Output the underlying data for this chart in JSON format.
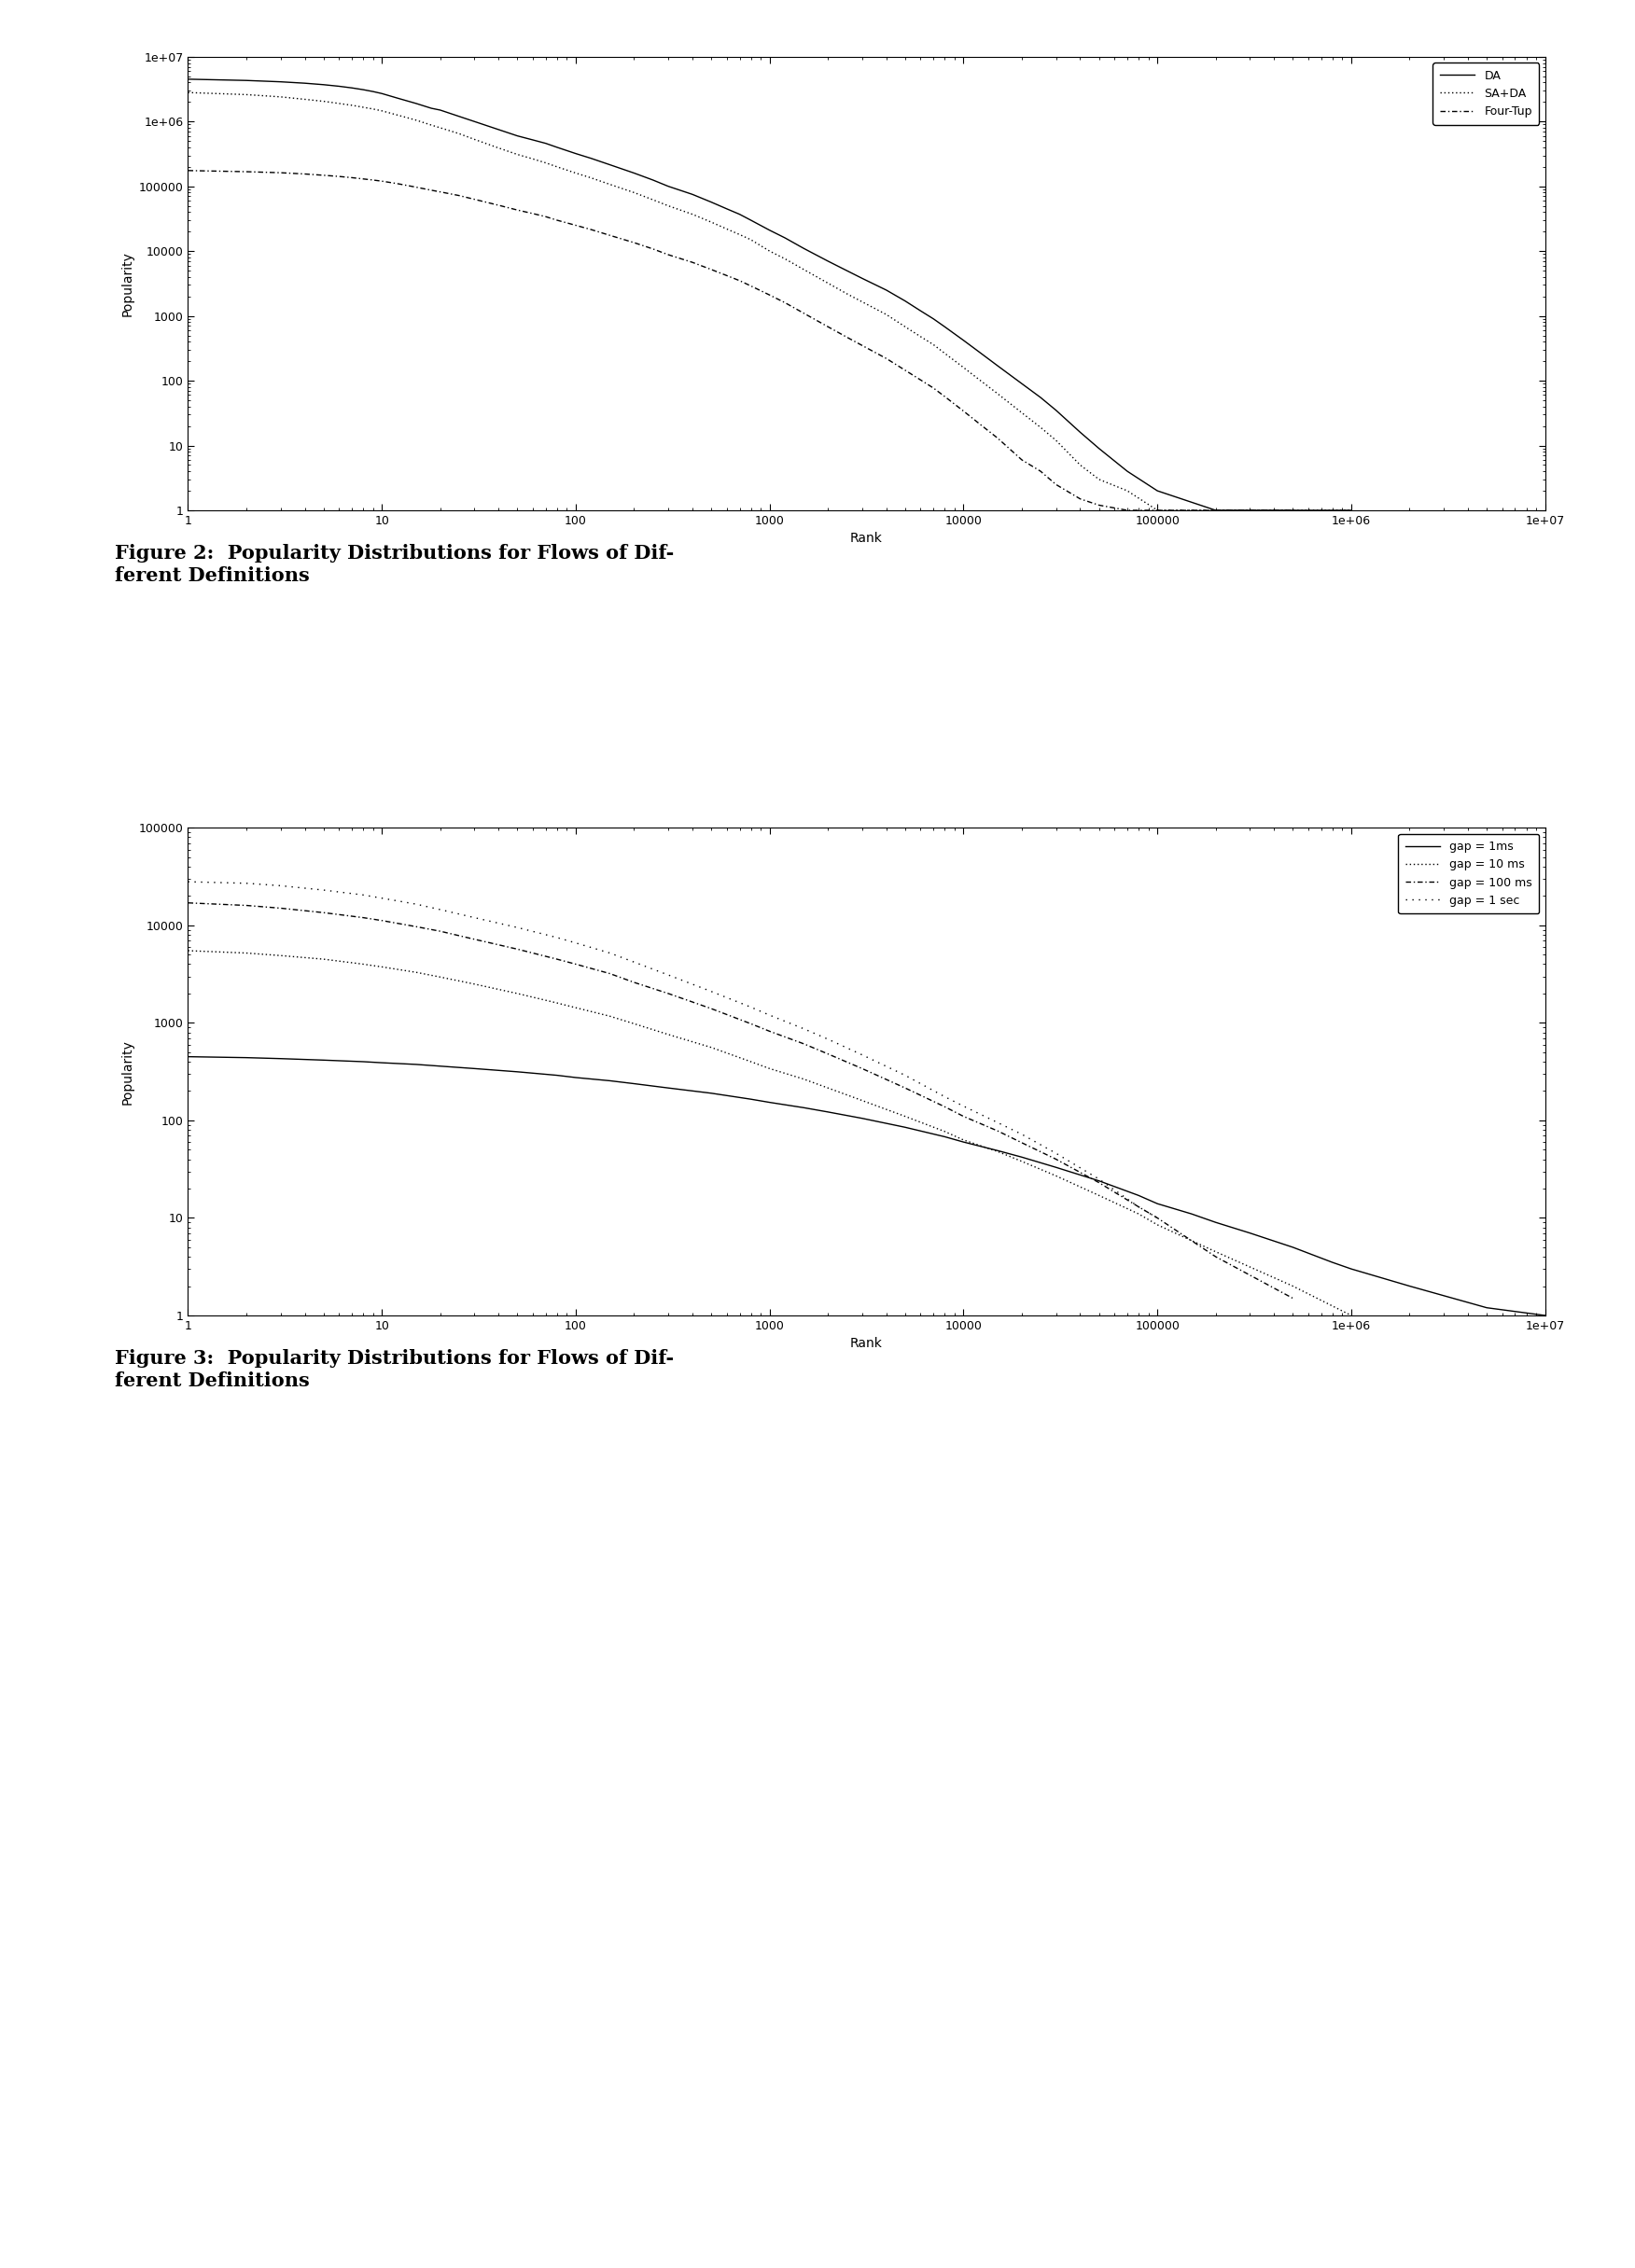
{
  "fig2": {
    "xlabel": "Rank",
    "ylabel": "Popularity",
    "legend": [
      "DA",
      "SA+DA",
      "Four-Tup"
    ],
    "xlim": [
      1,
      10000000.0
    ],
    "ylim": [
      1,
      10000000.0
    ],
    "DA": {
      "x": [
        1,
        2,
        3,
        4,
        5,
        6,
        7,
        8,
        9,
        10,
        12,
        15,
        18,
        20,
        25,
        30,
        40,
        50,
        60,
        70,
        80,
        100,
        120,
        150,
        200,
        250,
        300,
        400,
        500,
        600,
        700,
        800,
        1000,
        1200,
        1500,
        2000,
        2500,
        3000,
        4000,
        5000,
        6000,
        7000,
        8000,
        10000,
        12000,
        15000,
        20000,
        25000,
        30000,
        40000,
        50000,
        70000,
        100000,
        200000,
        500000,
        1000000
      ],
      "y": [
        4500000,
        4300000,
        4100000,
        3900000,
        3700000,
        3500000,
        3300000,
        3100000,
        2900000,
        2700000,
        2300000,
        1900000,
        1600000,
        1500000,
        1200000,
        1000000,
        750000,
        600000,
        520000,
        460000,
        400000,
        320000,
        270000,
        215000,
        160000,
        125000,
        100000,
        75000,
        57000,
        45000,
        37000,
        30000,
        21000,
        16000,
        11000,
        7000,
        5000,
        3800,
        2500,
        1700,
        1200,
        900,
        680,
        420,
        280,
        170,
        90,
        55,
        35,
        16,
        9,
        4,
        2,
        1,
        1,
        1
      ]
    },
    "SA+DA": {
      "x": [
        1,
        2,
        3,
        4,
        5,
        6,
        7,
        8,
        9,
        10,
        12,
        15,
        18,
        20,
        25,
        30,
        40,
        50,
        60,
        70,
        80,
        100,
        120,
        150,
        200,
        250,
        300,
        400,
        500,
        600,
        700,
        800,
        1000,
        1200,
        1500,
        2000,
        2500,
        3000,
        4000,
        5000,
        6000,
        7000,
        8000,
        10000,
        12000,
        15000,
        20000,
        25000,
        30000,
        40000,
        50000,
        70000,
        100000,
        200000,
        500000,
        1000000
      ],
      "y": [
        2800000,
        2600000,
        2400000,
        2200000,
        2050000,
        1900000,
        1780000,
        1660000,
        1560000,
        1460000,
        1260000,
        1050000,
        880000,
        800000,
        650000,
        530000,
        390000,
        310000,
        265000,
        230000,
        200000,
        160000,
        135000,
        107000,
        80000,
        62000,
        50000,
        37000,
        28000,
        22000,
        18000,
        15000,
        10000,
        7600,
        5200,
        3200,
        2200,
        1650,
        1050,
        680,
        480,
        360,
        265,
        160,
        105,
        63,
        32,
        19,
        12,
        5,
        3,
        2,
        1,
        1,
        1,
        1
      ]
    },
    "Four-Tup": {
      "x": [
        1,
        2,
        3,
        4,
        5,
        6,
        7,
        8,
        9,
        10,
        12,
        15,
        18,
        20,
        25,
        30,
        40,
        50,
        60,
        70,
        80,
        100,
        120,
        150,
        200,
        250,
        300,
        400,
        500,
        600,
        700,
        800,
        1000,
        1200,
        1500,
        2000,
        2500,
        3000,
        4000,
        5000,
        6000,
        7000,
        8000,
        10000,
        12000,
        15000,
        20000,
        25000,
        30000,
        40000,
        50000,
        70000,
        100000,
        200000,
        500000
      ],
      "y": [
        175000,
        168000,
        162000,
        155000,
        148000,
        142000,
        136000,
        130000,
        125000,
        120000,
        110000,
        97000,
        87000,
        82000,
        72000,
        63000,
        51000,
        43000,
        38000,
        34000,
        30000,
        25000,
        21500,
        17500,
        13500,
        10800,
        8800,
        6700,
        5200,
        4200,
        3500,
        2900,
        2100,
        1600,
        1100,
        680,
        470,
        350,
        220,
        145,
        103,
        77,
        57,
        34,
        22,
        13,
        6,
        4,
        2.5,
        1.5,
        1.2,
        1,
        1,
        1,
        1
      ]
    }
  },
  "fig3": {
    "xlabel": "Rank",
    "ylabel": "Popularity",
    "legend": [
      "gap = 1ms",
      "gap = 10 ms",
      "gap = 100 ms",
      "gap = 1 sec"
    ],
    "xlim": [
      1,
      10000000.0
    ],
    "ylim": [
      1,
      100000
    ],
    "gap1ms": {
      "x": [
        1,
        2,
        3,
        5,
        8,
        10,
        15,
        20,
        30,
        50,
        80,
        100,
        150,
        200,
        300,
        500,
        800,
        1000,
        1500,
        2000,
        3000,
        5000,
        8000,
        10000,
        15000,
        20000,
        30000,
        50000,
        80000,
        100000,
        150000,
        200000,
        300000,
        500000,
        800000,
        1000000,
        2000000,
        5000000,
        10000000.0
      ],
      "y": [
        450,
        440,
        430,
        415,
        400,
        390,
        375,
        360,
        340,
        315,
        290,
        275,
        255,
        238,
        215,
        190,
        165,
        153,
        135,
        122,
        105,
        85,
        68,
        60,
        49,
        42,
        33,
        24,
        17,
        14,
        11,
        9,
        7,
        5,
        3.5,
        3,
        2,
        1.2,
        1
      ]
    },
    "gap10ms": {
      "x": [
        1,
        2,
        3,
        5,
        8,
        10,
        15,
        20,
        30,
        50,
        80,
        100,
        150,
        200,
        300,
        500,
        800,
        1000,
        1500,
        2000,
        3000,
        5000,
        8000,
        10000,
        15000,
        20000,
        30000,
        50000,
        80000,
        100000,
        200000,
        500000,
        1000000
      ],
      "y": [
        5500,
        5200,
        4900,
        4500,
        4000,
        3750,
        3300,
        2950,
        2500,
        2000,
        1600,
        1430,
        1170,
        980,
        760,
        560,
        400,
        340,
        265,
        215,
        160,
        110,
        77,
        63,
        48,
        38,
        27,
        17,
        11,
        8.5,
        4.5,
        2,
        1
      ]
    },
    "gap100ms": {
      "x": [
        1,
        2,
        3,
        5,
        8,
        10,
        15,
        20,
        30,
        50,
        80,
        100,
        150,
        200,
        300,
        500,
        800,
        1000,
        1500,
        2000,
        3000,
        5000,
        8000,
        10000,
        15000,
        20000,
        30000,
        50000,
        80000,
        100000,
        200000,
        500000
      ],
      "y": [
        17000,
        16000,
        15000,
        13500,
        12000,
        11200,
        9700,
        8700,
        7200,
        5700,
        4500,
        4000,
        3200,
        2600,
        2000,
        1400,
        980,
        820,
        610,
        480,
        340,
        215,
        138,
        110,
        78,
        59,
        40,
        23,
        13,
        10,
        4,
        1.5
      ]
    },
    "gap1sec": {
      "x": [
        1,
        2,
        3,
        5,
        8,
        10,
        15,
        20,
        30,
        50,
        80,
        100,
        150,
        200,
        300,
        500,
        800,
        1000,
        1500,
        2000,
        3000,
        5000,
        8000,
        10000,
        15000,
        20000,
        30000,
        50000,
        80000,
        100000
      ],
      "y": [
        28000,
        27000,
        25500,
        23000,
        20500,
        19000,
        16500,
        14500,
        12000,
        9500,
        7500,
        6600,
        5200,
        4200,
        3100,
        2100,
        1450,
        1200,
        870,
        680,
        470,
        290,
        175,
        140,
        95,
        72,
        46,
        25,
        13,
        10
      ]
    }
  },
  "background_color": "#ffffff",
  "text_color": "#000000",
  "fig2_caption": "Figure 2:  Popularity Distributions for Flows of Dif-\nferent Definitions",
  "fig3_caption": "Figure 3:  Popularity Distributions for Flows of Dif-\nferent Definitions",
  "caption_fontsize": 15,
  "axis_label_fontsize": 10,
  "tick_label_fontsize": 9,
  "legend_fontsize": 9
}
